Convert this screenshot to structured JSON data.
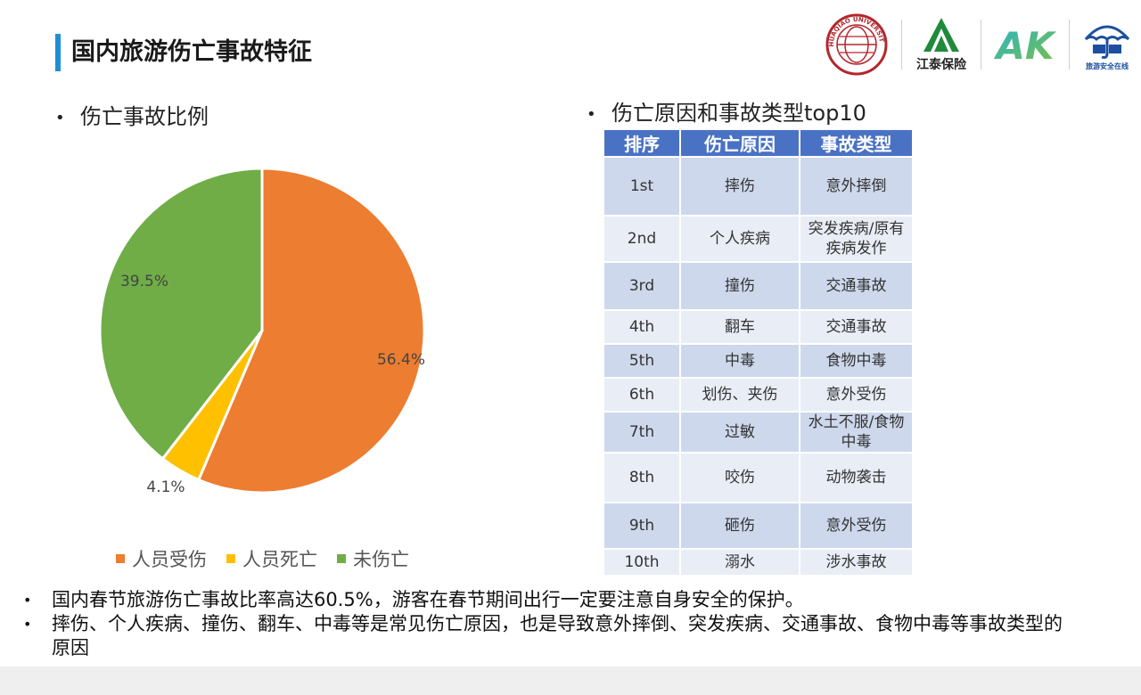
{
  "header": {
    "title": "国内旅游伤亡事故特征",
    "logos": [
      {
        "icon": "university-seal-icon",
        "seal_text": "HUAQIAO UNIVERSITY"
      },
      {
        "icon": "jiangtai-mountain-icon",
        "label": "江泰保险"
      },
      {
        "icon": "ak-logo-icon",
        "label": "AK"
      },
      {
        "icon": "umbrella-icon",
        "label": "旅游安全在线"
      }
    ]
  },
  "left_section": {
    "label": "伤亡事故比例"
  },
  "right_section": {
    "label": "伤亡原因和事故类型top10"
  },
  "chart_data": {
    "type": "pie",
    "title": "",
    "categories": [
      "人员受伤",
      "人员死亡",
      "未伤亡"
    ],
    "values": [
      56.4,
      4.1,
      39.5
    ],
    "value_labels": [
      "56.4%",
      "4.1%",
      "39.5%"
    ],
    "colors": [
      "#ed7d31",
      "#ffc000",
      "#70ad47"
    ],
    "legend_position": "bottom"
  },
  "table": {
    "headers": [
      "排序",
      "伤亡原因",
      "事故类型"
    ],
    "rows": [
      {
        "rank": "1st",
        "cause": "摔伤",
        "type": "意外摔倒"
      },
      {
        "rank": "2nd",
        "cause": "个人疾病",
        "type": "突发疾病/原有疾病发作"
      },
      {
        "rank": "3rd",
        "cause": "撞伤",
        "type": "交通事故"
      },
      {
        "rank": "4th",
        "cause": "翻车",
        "type": "交通事故"
      },
      {
        "rank": "5th",
        "cause": "中毒",
        "type": "食物中毒"
      },
      {
        "rank": "6th",
        "cause": "划伤、夹伤",
        "type": "意外受伤"
      },
      {
        "rank": "7th",
        "cause": "过敏",
        "type": "水土不服/食物中毒"
      },
      {
        "rank": "8th",
        "cause": "咬伤",
        "type": "动物袭击"
      },
      {
        "rank": "9th",
        "cause": "砸伤",
        "type": "意外受伤"
      },
      {
        "rank": "10th",
        "cause": "溺水",
        "type": "涉水事故"
      }
    ]
  },
  "bullets": [
    "国内春节旅游伤亡事故比率高达60.5%，游客在春节期间出行一定要注意自身安全的保护。",
    "摔伤、个人疾病、撞伤、翻车、中毒等是常见伤亡原因，也是导致意外摔倒、突发疾病、交通事故、食物中毒等事故类型的原因"
  ],
  "bullet_symbol": "•"
}
